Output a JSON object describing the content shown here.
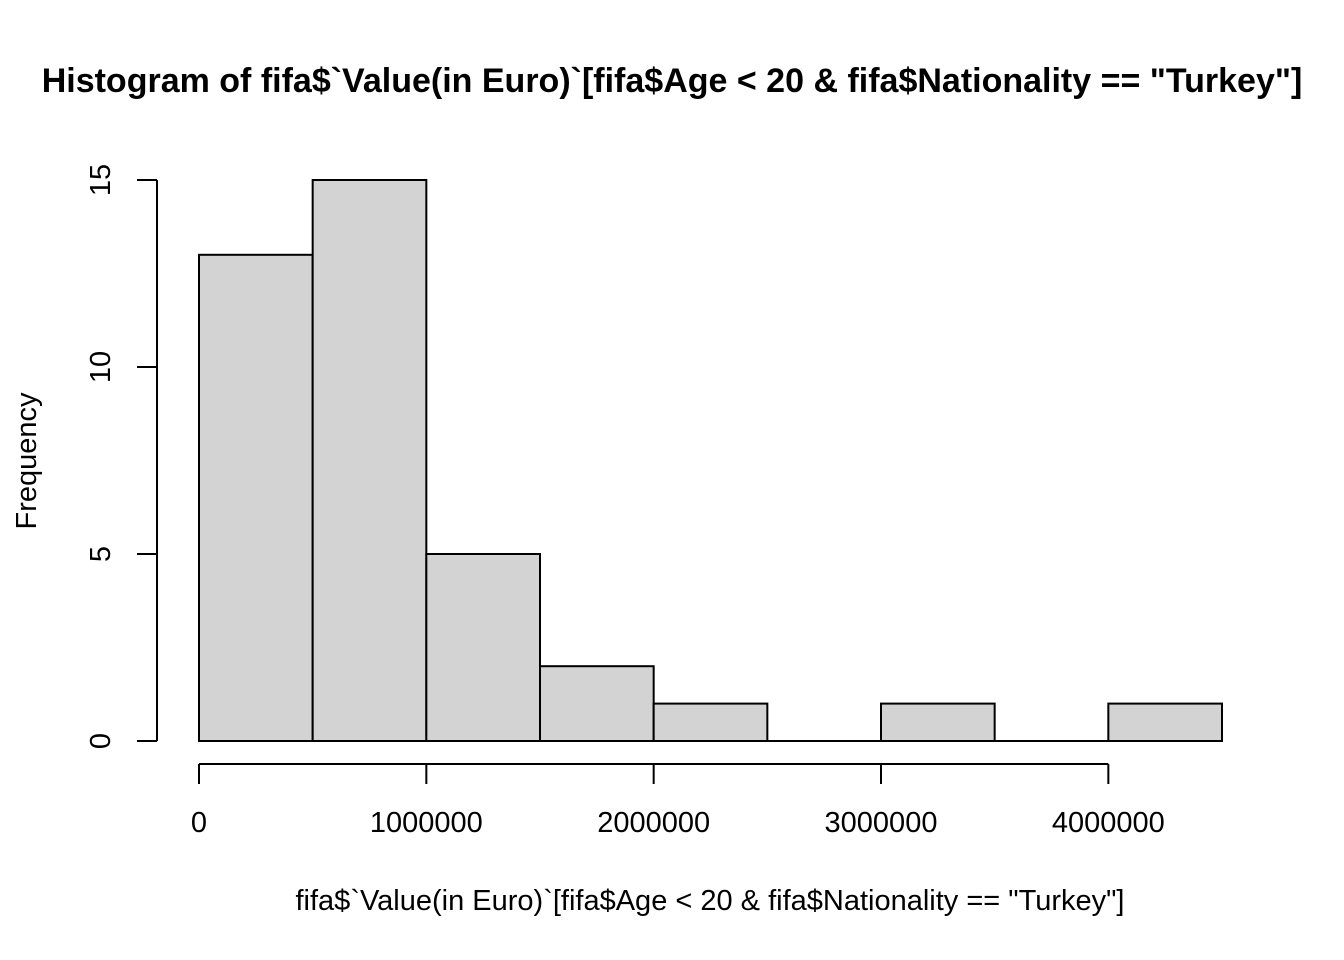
{
  "chart_data": {
    "type": "bar",
    "title": "Histogram of fifa$`Value(in Euro)`[fifa$Age < 20 & fifa$Nationality == \"Turkey\"]",
    "xlabel": "fifa$`Value(in Euro)`[fifa$Age < 20 & fifa$Nationality == \"Turkey\"]",
    "ylabel": "Frequency",
    "bins": [
      {
        "x0": 0,
        "x1": 500000,
        "count": 13
      },
      {
        "x0": 500000,
        "x1": 1000000,
        "count": 15
      },
      {
        "x0": 1000000,
        "x1": 1500000,
        "count": 5
      },
      {
        "x0": 1500000,
        "x1": 2000000,
        "count": 2
      },
      {
        "x0": 2000000,
        "x1": 2500000,
        "count": 1
      },
      {
        "x0": 2500000,
        "x1": 3000000,
        "count": 0
      },
      {
        "x0": 3000000,
        "x1": 3500000,
        "count": 1
      },
      {
        "x0": 3500000,
        "x1": 4000000,
        "count": 0
      },
      {
        "x0": 4000000,
        "x1": 4500000,
        "count": 1
      }
    ],
    "x_ticks": [
      0,
      1000000,
      2000000,
      3000000,
      4000000
    ],
    "x_tick_labels": [
      "0",
      "1000000",
      "2000000",
      "3000000",
      "4000000"
    ],
    "y_ticks": [
      0,
      5,
      10,
      15
    ],
    "y_tick_labels": [
      "0",
      "5",
      "10",
      "15"
    ],
    "xlim": [
      0,
      4500000
    ],
    "ylim": [
      0,
      15
    ],
    "bar_color": "#d3d3d3",
    "grid": false
  }
}
